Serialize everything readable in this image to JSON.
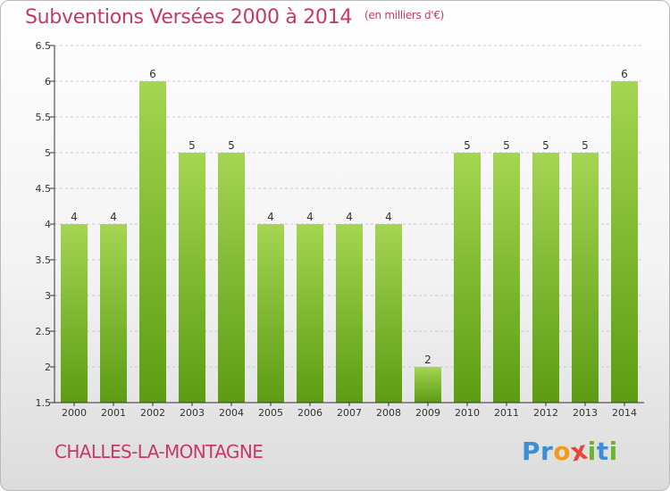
{
  "header": {
    "title": "Subventions Versées 2000 à 2014",
    "unit": "(en milliers d'€)"
  },
  "footer": {
    "commune": "CHALLES-LA-MONTAGNE",
    "logo": {
      "letters": [
        "P",
        "r",
        "o",
        "x",
        "i",
        "t",
        "i"
      ],
      "colors": [
        "#3a8fd6",
        "#3a8fd6",
        "#f29a1e",
        "#e8443a",
        "#6bb533",
        "#3a8fd6",
        "#6bb533"
      ]
    }
  },
  "colors": {
    "bar_top": "#a4d553",
    "bar_bottom": "#5c9c13",
    "axis": "#333333",
    "grid": "#cccccc",
    "text": "#333333",
    "accent": "#c9376a"
  },
  "chart_data": {
    "type": "bar",
    "categories": [
      "2000",
      "2001",
      "2002",
      "2003",
      "2004",
      "2005",
      "2006",
      "2007",
      "2008",
      "2009",
      "2010",
      "2011",
      "2012",
      "2013",
      "2014"
    ],
    "values": [
      4,
      4,
      6,
      5,
      5,
      4,
      4,
      4,
      4,
      2,
      5,
      5,
      5,
      5,
      6
    ],
    "value_labels": [
      "4",
      "4",
      "6",
      "5",
      "5",
      "4",
      "4",
      "4",
      "4",
      "2",
      "5",
      "5",
      "5",
      "5",
      "6"
    ],
    "ylim": [
      1.5,
      6.5
    ],
    "yticks": [
      "1.5",
      "2",
      "2.5",
      "3",
      "3.5",
      "4",
      "4.5",
      "5",
      "5.5",
      "6",
      "6.5"
    ],
    "grid": "horizontal dashed",
    "legend": "none"
  }
}
